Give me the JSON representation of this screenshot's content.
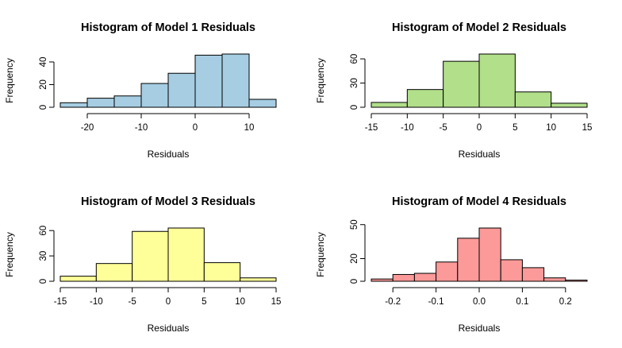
{
  "chart_data": [
    {
      "type": "bar",
      "title": "Histogram of Model 1 Residuals",
      "xlabel": "Residuals",
      "ylabel": "Frequency",
      "color": "#a6cde2",
      "breaks": [
        -25,
        -20,
        -15,
        -10,
        -5,
        0,
        5,
        10,
        15
      ],
      "values": [
        4,
        8,
        10,
        21,
        30,
        46,
        47,
        7
      ],
      "xticks": [
        -20,
        -10,
        0,
        10
      ],
      "yticks": [
        0,
        20,
        40
      ],
      "xlim": [
        -25,
        15
      ],
      "ylim": [
        0,
        47
      ]
    },
    {
      "type": "bar",
      "title": "Histogram of Model 2 Residuals",
      "xlabel": "Residuals",
      "ylabel": "Frequency",
      "color": "#b2df8a",
      "breaks": [
        -15,
        -10,
        -5,
        0,
        5,
        10,
        15
      ],
      "values": [
        6,
        22,
        57,
        66,
        19,
        5
      ],
      "xticks": [
        -15,
        -10,
        -5,
        0,
        5,
        10,
        15
      ],
      "yticks": [
        0,
        30,
        60
      ],
      "xlim": [
        -15,
        15
      ],
      "ylim": [
        0,
        66
      ]
    },
    {
      "type": "bar",
      "title": "Histogram of Model 3 Residuals",
      "xlabel": "Residuals",
      "ylabel": "Frequency",
      "color": "#ffff99",
      "breaks": [
        -15,
        -10,
        -5,
        0,
        5,
        10,
        15
      ],
      "values": [
        6,
        21,
        59,
        63,
        22,
        4
      ],
      "xticks": [
        -15,
        -10,
        -5,
        0,
        5,
        10,
        15
      ],
      "yticks": [
        0,
        30,
        60
      ],
      "xlim": [
        -15,
        15
      ],
      "ylim": [
        0,
        63
      ]
    },
    {
      "type": "bar",
      "title": "Histogram of Model 4 Residuals",
      "xlabel": "Residuals",
      "ylabel": "Frequency",
      "color": "#fb9a99",
      "breaks": [
        -0.25,
        -0.2,
        -0.15,
        -0.1,
        -0.05,
        0.0,
        0.05,
        0.1,
        0.15,
        0.2,
        0.25
      ],
      "values": [
        2,
        6,
        7,
        17,
        38,
        47,
        19,
        12,
        3,
        1
      ],
      "xticks": [
        "-0.2",
        "-0.1",
        "0.0",
        "0.1",
        "0.2"
      ],
      "yticks": [
        0,
        20,
        50
      ],
      "xlim": [
        -0.25,
        0.25
      ],
      "ylim": [
        0,
        47
      ]
    }
  ]
}
